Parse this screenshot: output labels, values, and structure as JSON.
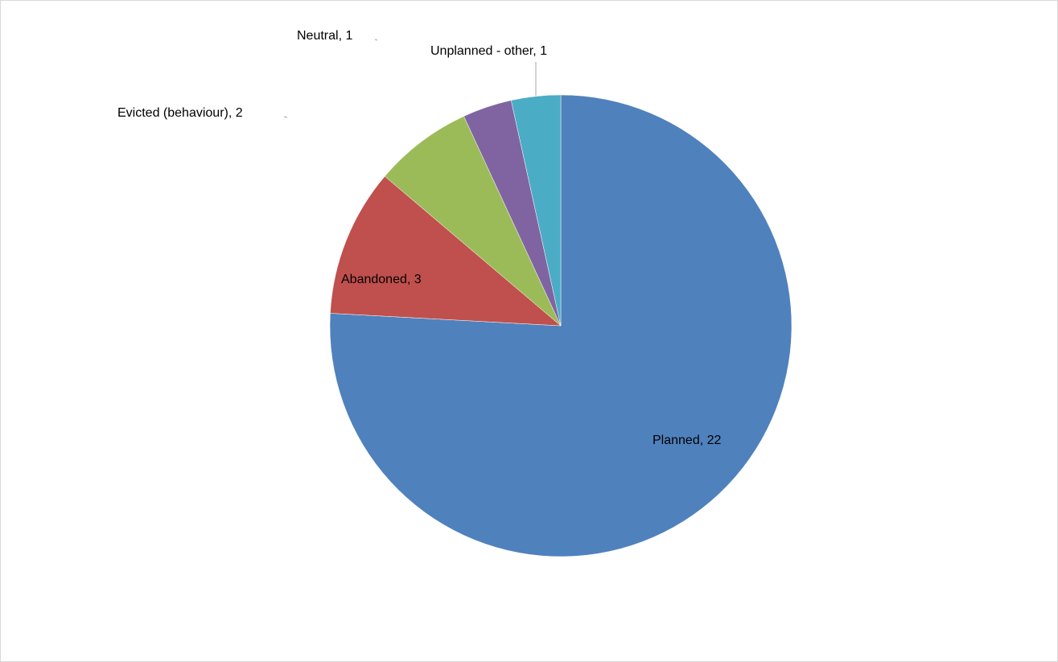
{
  "chart_data": {
    "type": "pie",
    "title": "",
    "start_angle_deg": 0,
    "direction": "clockwise",
    "slices": [
      {
        "label": "Planned",
        "value": 22,
        "color": "#4f81bd",
        "data_label": "Planned, 22"
      },
      {
        "label": "Abandoned",
        "value": 3,
        "color": "#c0504d",
        "data_label": "Abandoned, 3"
      },
      {
        "label": "Evicted (behaviour)",
        "value": 2,
        "color": "#9bbb59",
        "data_label": "Evicted (behaviour), 2"
      },
      {
        "label": "Neutral",
        "value": 1,
        "color": "#8064a2",
        "data_label": "Neutral, 1"
      },
      {
        "label": "Unplanned - other",
        "value": 1,
        "color": "#4bacc6",
        "data_label": "Unplanned - other, 1"
      }
    ],
    "legend": "none"
  }
}
